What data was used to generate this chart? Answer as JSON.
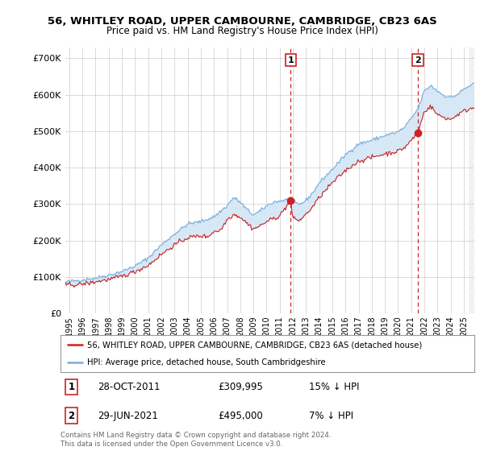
{
  "title_line1": "56, WHITLEY ROAD, UPPER CAMBOURNE, CAMBRIDGE, CB23 6AS",
  "title_line2": "Price paid vs. HM Land Registry's House Price Index (HPI)",
  "ylabel_ticks": [
    "£0",
    "£100K",
    "£200K",
    "£300K",
    "£400K",
    "£500K",
    "£600K",
    "£700K"
  ],
  "ytick_values": [
    0,
    100000,
    200000,
    300000,
    400000,
    500000,
    600000,
    700000
  ],
  "ylim": [
    0,
    730000
  ],
  "xlim_start": 1994.7,
  "xlim_end": 2025.8,
  "xtick_years": [
    1995,
    1996,
    1997,
    1998,
    1999,
    2000,
    2001,
    2002,
    2003,
    2004,
    2005,
    2006,
    2007,
    2008,
    2009,
    2010,
    2011,
    2012,
    2013,
    2014,
    2015,
    2016,
    2017,
    2018,
    2019,
    2020,
    2021,
    2022,
    2023,
    2024,
    2025
  ],
  "hpi_color": "#7aaddd",
  "price_color": "#cc2222",
  "fill_color": "#d6e8f5",
  "marker1_x": 2011.83,
  "marker1_y": 309995,
  "marker1_label": "1",
  "marker1_date": "28-OCT-2011",
  "marker1_price": "£309,995",
  "marker1_hpi": "15% ↓ HPI",
  "marker2_x": 2021.5,
  "marker2_y": 495000,
  "marker2_label": "2",
  "marker2_date": "29-JUN-2021",
  "marker2_price": "£495,000",
  "marker2_hpi": "7% ↓ HPI",
  "legend_entry1": "56, WHITLEY ROAD, UPPER CAMBOURNE, CAMBRIDGE, CB23 6AS (detached house)",
  "legend_entry2": "HPI: Average price, detached house, South Cambridgeshire",
  "footnote": "Contains HM Land Registry data © Crown copyright and database right 2024.\nThis data is licensed under the Open Government Licence v3.0.",
  "background_color": "#ffffff",
  "grid_color": "#cccccc"
}
